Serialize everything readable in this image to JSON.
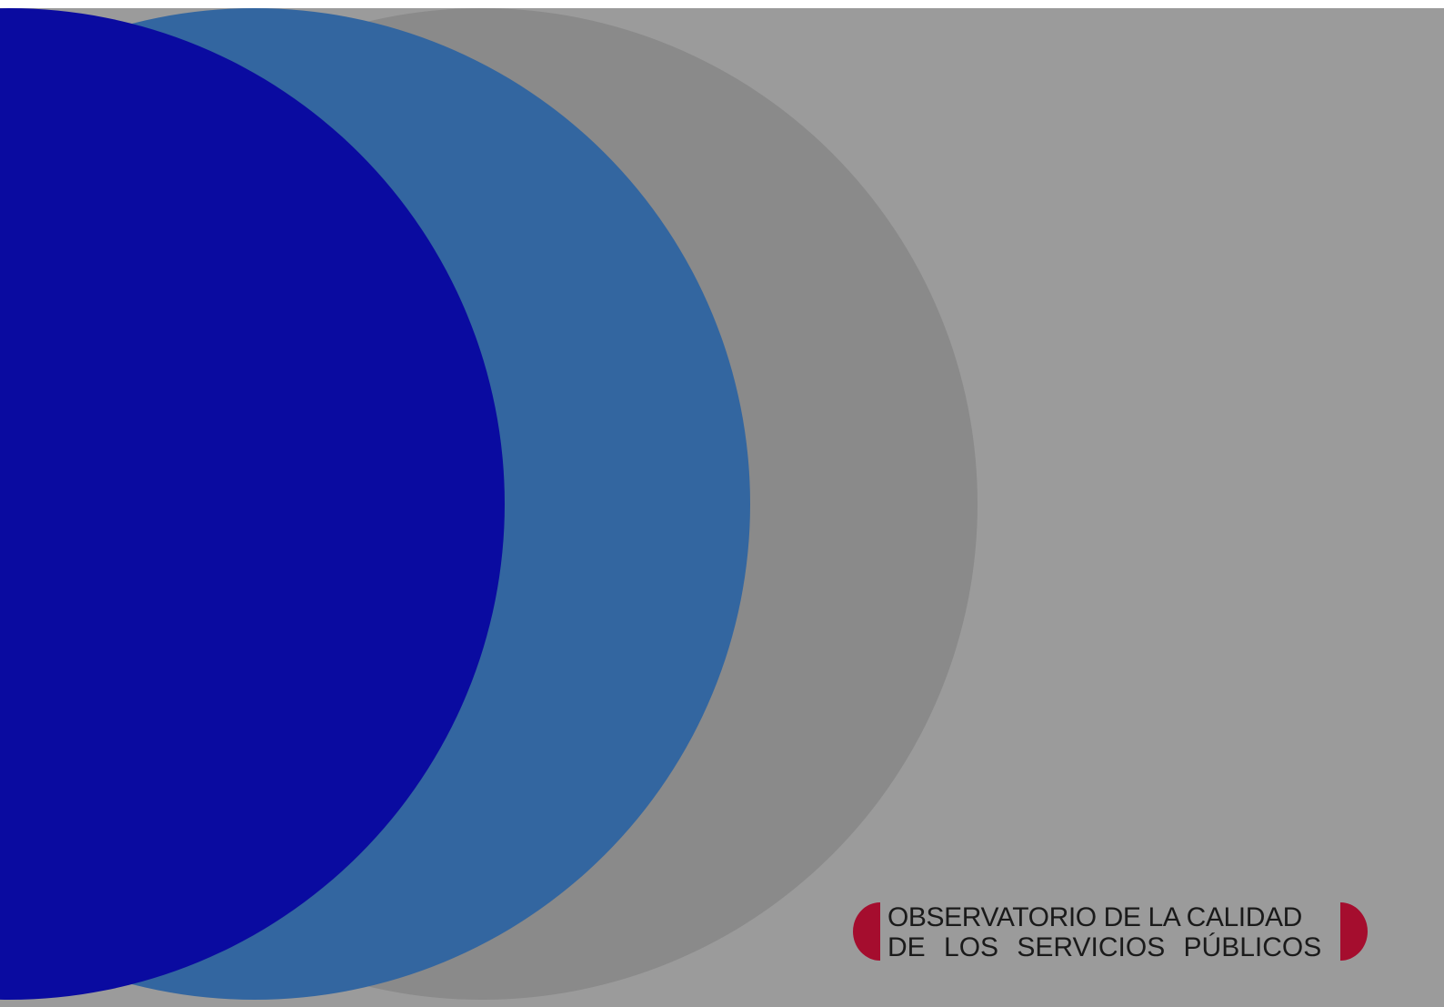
{
  "colors": {
    "background": "#9b9b9b",
    "circle_gray": "#8a8a8a",
    "circle_steel_blue": "#3366a0",
    "circle_navy": "#0a0ba0",
    "logo_accent": "#a50d2e",
    "logo_text": "#1a1a1a"
  },
  "logo": {
    "line1": "OBSERVATORIO DE LA CALIDAD",
    "line2": "DE LOS SERVICIOS PÚBLICOS"
  }
}
